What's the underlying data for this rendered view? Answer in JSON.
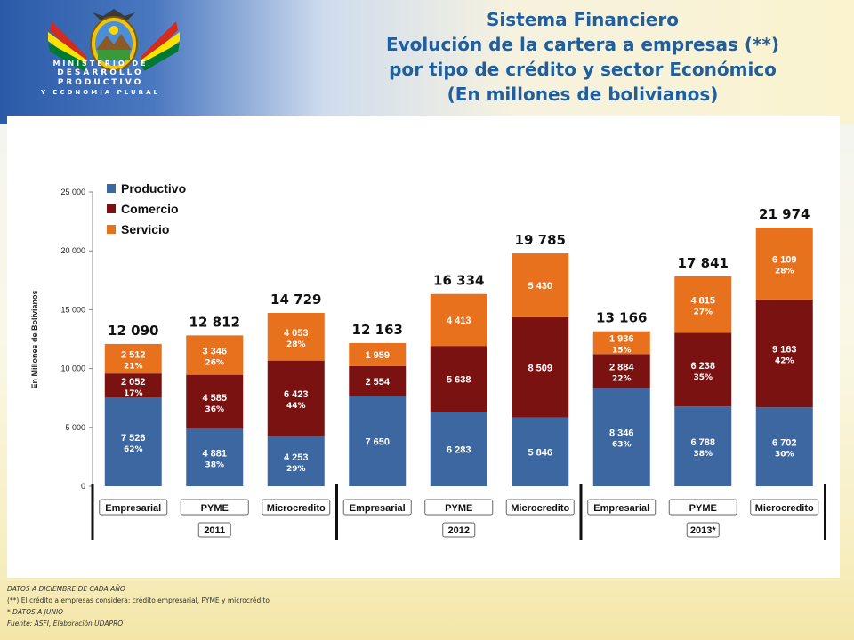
{
  "header": {
    "ministry_line1": "MINISTERIO DE",
    "ministry_line2": "DESARROLLO PRODUCTIVO",
    "ministry_line3": "Y ECONOMÍA PLURAL",
    "title_lines": [
      "Sistema Financiero",
      "Evolución de la cartera a empresas (**)",
      "por tipo de crédito y sector Económico",
      "(En millones de bolivianos)"
    ]
  },
  "colors": {
    "productivo": "#3d67a1",
    "comercio": "#7b1212",
    "servicio": "#e8711d",
    "title": "#1f5fa0"
  },
  "chart_data": {
    "type": "bar",
    "stacked": true,
    "ylabel": "En Millones de Bolivianos",
    "ylim": [
      0,
      25000
    ],
    "yticks": [
      "0",
      "5 000",
      "10 000",
      "15 000",
      "20 000",
      "25 000"
    ],
    "legend_position": "top-left",
    "categories": [
      "Empresarial",
      "PYME",
      "Microcredito",
      "Empresarial",
      "PYME",
      "Microcredito",
      "Empresarial",
      "PYME",
      "Microcredito"
    ],
    "groups": [
      {
        "label": "2011",
        "span": 3
      },
      {
        "label": "2012",
        "span": 3
      },
      {
        "label": "2013*",
        "span": 3
      }
    ],
    "totals": [
      12090,
      12812,
      14729,
      12163,
      16334,
      19785,
      13166,
      17841,
      21974
    ],
    "total_labels": [
      "12 090",
      "12 812",
      "14 729",
      "12 163",
      "16 334",
      "19 785",
      "13 166",
      "17 841",
      "21 974"
    ],
    "series": [
      {
        "name": "Productivo",
        "values": [
          7526,
          4881,
          4253,
          7650,
          6283,
          5846,
          8346,
          6788,
          6702
        ],
        "value_labels": [
          "7 526",
          "4 881",
          "4 253",
          "7 650",
          "6 283",
          "5 846",
          "8 346",
          "6 788",
          "6 702"
        ],
        "pct_labels": [
          "62%",
          "38%",
          "29%",
          "",
          "",
          "",
          "63%",
          "38%",
          "30%"
        ]
      },
      {
        "name": "Comercio",
        "values": [
          2052,
          4585,
          6423,
          2554,
          5638,
          8509,
          2884,
          6238,
          9163
        ],
        "value_labels": [
          "2 052",
          "4 585",
          "6 423",
          "2 554",
          "5 638",
          "8 509",
          "2 884",
          "6 238",
          "9 163"
        ],
        "pct_labels": [
          "17%",
          "36%",
          "44%",
          "",
          "",
          "",
          "22%",
          "35%",
          "42%"
        ]
      },
      {
        "name": "Servicio",
        "values": [
          2512,
          3346,
          4053,
          1959,
          4413,
          5430,
          1936,
          4815,
          6109
        ],
        "value_labels": [
          "2 512",
          "3 346",
          "4 053",
          "1 959",
          "4 413",
          "5 430",
          "1 936",
          "4 815",
          "6 109"
        ],
        "pct_labels": [
          "21%",
          "26%",
          "28%",
          "",
          "",
          "",
          "15%",
          "27%",
          "28%"
        ]
      }
    ]
  },
  "footer": {
    "note1": "DATOS A DICIEMBRE DE CADA AÑO",
    "note2": "(**) El crédito a empresas considera: crédito empresarial, PYME y microcrédito",
    "note3": "* DATOS A JUNIO",
    "source": "Fuente: ASFI, Elaboración UDAPRO"
  }
}
